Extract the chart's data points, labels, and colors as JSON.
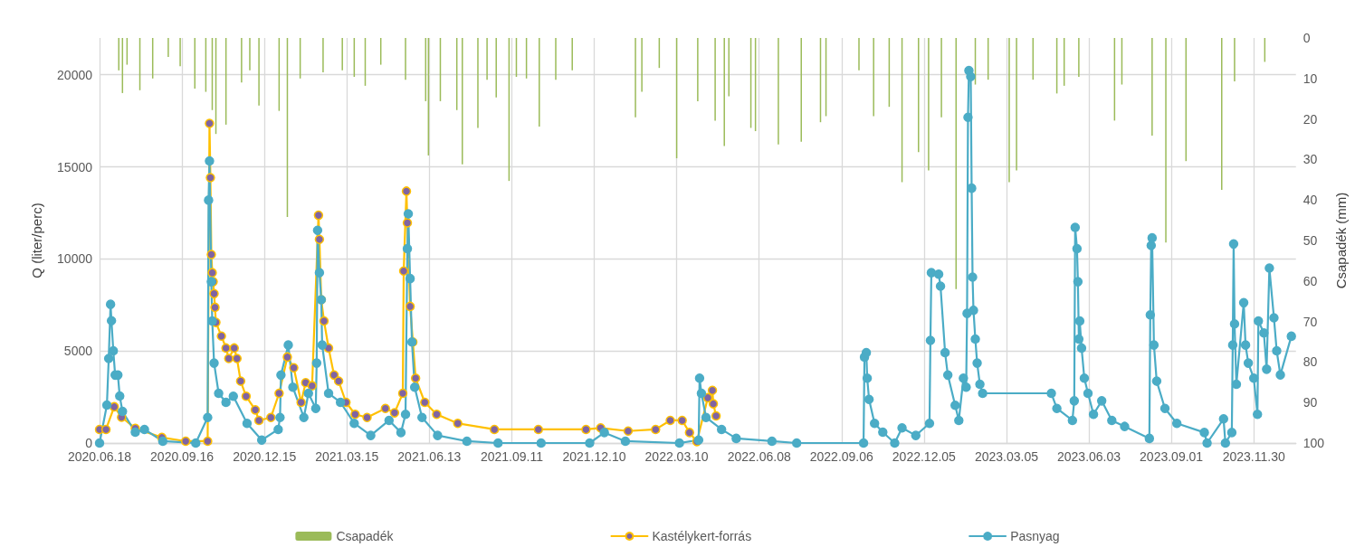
{
  "chart_data": {
    "type": "line",
    "ylabel": "Q (liter/perc)",
    "y2label": "Csapadék (mm)",
    "xlim": [
      "2020-06-18",
      "2024-01-15"
    ],
    "xticks": [
      {
        "value": "2020-06-18",
        "label": "2020.06.18"
      },
      {
        "value": "2020-09-16",
        "label": "2020.09.16"
      },
      {
        "value": "2020-12-15",
        "label": "2020.12.15"
      },
      {
        "value": "2021-03-15",
        "label": "2021.03.15"
      },
      {
        "value": "2021-06-13",
        "label": "2021.06.13"
      },
      {
        "value": "2021-09-11",
        "label": "2021.09.11"
      },
      {
        "value": "2021-12-10",
        "label": "2021.12.10"
      },
      {
        "value": "2022-03-10",
        "label": "2022.03.10"
      },
      {
        "value": "2022-06-08",
        "label": "2022.06.08"
      },
      {
        "value": "2022-09-06",
        "label": "2022.09.06"
      },
      {
        "value": "2022-12-05",
        "label": "2022.12.05"
      },
      {
        "value": "2023-03-05",
        "label": "2023.03.05"
      },
      {
        "value": "2023-06-03",
        "label": "2023.06.03"
      },
      {
        "value": "2023-09-01",
        "label": "2023.09.01"
      },
      {
        "value": "2023-11-30",
        "label": "2023.11.30"
      }
    ],
    "ylim": [
      0,
      22000
    ],
    "yticks": [
      0,
      5000,
      10000,
      15000,
      20000
    ],
    "y2lim": [
      100,
      0
    ],
    "y2ticks": [
      0,
      10,
      20,
      30,
      40,
      50,
      60,
      70,
      80,
      90,
      100
    ],
    "grid": true,
    "legend": "bottom",
    "marker": "circle",
    "line_style": "solid",
    "series": [
      {
        "name": "Csapadék",
        "type": "bar",
        "axis": "y2",
        "color": "#9bbb59",
        "x": [
          "2020-07-09",
          "2020-07-13",
          "2020-07-18",
          "2020-08-01",
          "2020-08-15",
          "2020-09-01",
          "2020-09-14",
          "2020-09-30",
          "2020-10-12",
          "2020-10-19",
          "2020-10-23",
          "2020-11-03",
          "2020-11-20",
          "2020-11-29",
          "2020-12-09",
          "2020-12-31",
          "2021-01-09",
          "2021-01-23",
          "2021-02-17",
          "2021-03-10",
          "2021-03-23",
          "2021-04-04",
          "2021-04-21",
          "2021-05-18",
          "2021-06-09",
          "2021-06-12",
          "2021-06-25",
          "2021-07-13",
          "2021-07-19",
          "2021-08-05",
          "2021-08-15",
          "2021-08-25",
          "2021-09-08",
          "2021-09-16",
          "2021-09-27",
          "2021-10-11",
          "2021-10-29",
          "2021-11-16",
          "2022-01-24",
          "2022-01-31",
          "2022-02-19",
          "2022-03-10",
          "2022-04-02",
          "2022-04-21",
          "2022-05-01",
          "2022-05-06",
          "2022-05-30",
          "2022-06-04",
          "2022-06-29",
          "2022-07-24",
          "2022-08-14",
          "2022-08-20",
          "2022-09-25",
          "2022-10-11",
          "2022-10-28",
          "2022-11-11",
          "2022-11-29",
          "2022-12-10",
          "2022-12-24",
          "2023-01-09",
          "2023-01-30",
          "2023-02-13",
          "2023-03-08",
          "2023-03-16",
          "2023-04-03",
          "2023-04-29",
          "2023-05-07",
          "2023-05-23",
          "2023-07-01",
          "2023-07-09",
          "2023-08-11",
          "2023-08-26",
          "2023-09-17",
          "2023-10-26",
          "2023-11-09",
          "2023-12-12"
        ],
        "values": [
          8,
          13.6,
          6.6,
          12.9,
          10,
          4.7,
          7,
          12.5,
          13.3,
          17.8,
          23.7,
          21.4,
          11,
          8,
          16.7,
          18,
          44.2,
          10,
          8.5,
          8,
          9.6,
          11.8,
          6.6,
          10.3,
          15.6,
          29,
          15.6,
          17.8,
          31.2,
          22.2,
          10.3,
          14.7,
          35.3,
          9.6,
          10,
          21.9,
          10.3,
          8,
          19.6,
          13.3,
          7.4,
          29.7,
          15.6,
          20.4,
          26.7,
          14.4,
          22.2,
          23,
          26.3,
          25.6,
          20.8,
          19.3,
          8,
          19.3,
          17,
          35.6,
          28.2,
          32.7,
          19.6,
          62,
          11.5,
          10.3,
          35.6,
          32.7,
          10.3,
          13.7,
          11.8,
          9.6,
          20.4,
          11.5,
          24.1,
          50.5,
          30.4,
          37.5,
          10.7,
          5.9
        ]
      },
      {
        "name": "Kastélykert-forrás",
        "color": "#ffc000",
        "x": [
          "2020-06-18",
          "2020-06-25",
          "2020-07-04",
          "2020-07-12",
          "2020-07-27",
          "2020-08-25",
          "2020-09-20",
          "2020-10-14",
          "2020-10-16",
          "2020-10-17",
          "2020-10-18",
          "2020-10-19",
          "2020-10-20",
          "2020-10-21",
          "2020-10-22",
          "2020-10-23",
          "2020-10-29",
          "2020-11-03",
          "2020-11-06",
          "2020-11-12",
          "2020-11-15",
          "2020-11-19",
          "2020-11-25",
          "2020-12-05",
          "2020-12-09",
          "2020-12-22",
          "2020-12-31",
          "2021-01-09",
          "2021-01-16",
          "2021-01-24",
          "2021-01-29",
          "2021-02-05",
          "2021-02-12",
          "2021-02-13",
          "2021-02-15",
          "2021-02-18",
          "2021-02-23",
          "2021-03-01",
          "2021-03-06",
          "2021-03-14",
          "2021-03-24",
          "2021-04-06",
          "2021-04-26",
          "2021-05-06",
          "2021-05-15",
          "2021-05-16",
          "2021-05-19",
          "2021-05-20",
          "2021-05-23",
          "2021-05-26",
          "2021-05-29",
          "2021-06-08",
          "2021-06-21",
          "2021-07-14",
          "2021-08-23",
          "2021-10-10",
          "2021-12-01",
          "2021-12-17",
          "2022-01-16",
          "2022-02-15",
          "2022-03-03",
          "2022-03-16",
          "2022-03-24",
          "2022-04-01",
          "2022-04-13",
          "2022-04-18",
          "2022-04-19",
          "2022-04-22"
        ],
        "values": [
          740,
          740,
          1970,
          1400,
          800,
          300,
          100,
          100,
          17360,
          14410,
          10240,
          9250,
          8760,
          8110,
          7370,
          6550,
          5810,
          5160,
          4590,
          5160,
          4590,
          3360,
          2540,
          1800,
          1230,
          1390,
          2700,
          4670,
          4090,
          2210,
          3280,
          3110,
          12370,
          11060,
          7780,
          6630,
          5160,
          3690,
          3360,
          2210,
          1560,
          1390,
          1880,
          1640,
          2700,
          9340,
          13680,
          11960,
          7420,
          5490,
          3520,
          2210,
          1560,
          1070,
          740,
          740,
          740,
          820,
          650,
          740,
          1230,
          1230,
          570,
          80,
          2460,
          2860,
          2130,
          1470
        ]
      },
      {
        "name": "Pasnyag",
        "color": "#4bacc6",
        "x": [
          "2020-06-18",
          "2020-06-26",
          "2020-06-28",
          "2020-06-30",
          "2020-07-01",
          "2020-07-03",
          "2020-07-05",
          "2020-07-08",
          "2020-07-10",
          "2020-07-13",
          "2020-07-27",
          "2020-08-06",
          "2020-08-26",
          "2020-10-01",
          "2020-10-14",
          "2020-10-15",
          "2020-10-16",
          "2020-10-18",
          "2020-10-19",
          "2020-10-21",
          "2020-10-26",
          "2020-11-03",
          "2020-11-11",
          "2020-11-26",
          "2020-12-12",
          "2020-12-30",
          "2021-01-01",
          "2021-01-02",
          "2021-01-10",
          "2021-01-15",
          "2021-01-27",
          "2021-02-01",
          "2021-02-09",
          "2021-02-10",
          "2021-02-11",
          "2021-02-13",
          "2021-02-15",
          "2021-02-16",
          "2021-02-23",
          "2021-03-08",
          "2021-03-23",
          "2021-04-10",
          "2021-04-30",
          "2021-05-13",
          "2021-05-18",
          "2021-05-20",
          "2021-05-21",
          "2021-05-23",
          "2021-05-25",
          "2021-05-28",
          "2021-06-05",
          "2021-06-22",
          "2021-07-24",
          "2021-08-27",
          "2021-10-13",
          "2021-12-05",
          "2021-12-21",
          "2022-01-13",
          "2022-03-13",
          "2022-04-03",
          "2022-04-04",
          "2022-04-06",
          "2022-04-11",
          "2022-04-28",
          "2022-05-14",
          "2022-06-22",
          "2022-07-19",
          "2022-09-30",
          "2022-10-01",
          "2022-10-03",
          "2022-10-04",
          "2022-10-06",
          "2022-10-12",
          "2022-10-21",
          "2022-11-03",
          "2022-11-11",
          "2022-11-26",
          "2022-12-11",
          "2022-12-12",
          "2022-12-13",
          "2022-12-21",
          "2022-12-23",
          "2022-12-28",
          "2022-12-31",
          "2023-01-08",
          "2023-01-12",
          "2023-01-17",
          "2023-01-20",
          "2023-01-21",
          "2023-01-22",
          "2023-01-23",
          "2023-01-25",
          "2023-01-26",
          "2023-01-27",
          "2023-01-28",
          "2023-01-30",
          "2023-02-01",
          "2023-02-04",
          "2023-02-07",
          "2023-04-23",
          "2023-04-29",
          "2023-05-16",
          "2023-05-18",
          "2023-05-19",
          "2023-05-21",
          "2023-05-22",
          "2023-05-23",
          "2023-05-24",
          "2023-05-26",
          "2023-05-29",
          "2023-06-02",
          "2023-06-08",
          "2023-06-17",
          "2023-06-28",
          "2023-07-12",
          "2023-08-08",
          "2023-08-09",
          "2023-08-10",
          "2023-08-11",
          "2023-08-13",
          "2023-08-16",
          "2023-08-25",
          "2023-09-07",
          "2023-10-07",
          "2023-10-10",
          "2023-10-28",
          "2023-10-30",
          "2023-11-06",
          "2023-11-07",
          "2023-11-08",
          "2023-11-09",
          "2023-11-11",
          "2023-11-19",
          "2023-11-21",
          "2023-11-24",
          "2023-11-30",
          "2023-12-04",
          "2023-12-05",
          "2023-12-11",
          "2023-12-14",
          "2023-12-17",
          "2023-12-22",
          "2023-12-25",
          "2023-12-29",
          "2024-01-10"
        ],
        "values": [
          0,
          2060,
          4590,
          7530,
          6640,
          5010,
          3690,
          3690,
          2550,
          1720,
          590,
          740,
          100,
          0,
          1390,
          13190,
          15320,
          8760,
          6630,
          4340,
          2700,
          2210,
          2540,
          1070,
          160,
          740,
          1390,
          3690,
          5320,
          3030,
          1390,
          2700,
          1880,
          4340,
          11550,
          9250,
          7780,
          5320,
          2700,
          2210,
          1070,
          410,
          1230,
          570,
          1560,
          10560,
          12450,
          8930,
          5490,
          3030,
          1390,
          410,
          100,
          0,
          0,
          0,
          570,
          100,
          0,
          160,
          3520,
          2700,
          1390,
          740,
          250,
          100,
          0,
          0,
          4670,
          4910,
          3520,
          2370,
          1070,
          590,
          0,
          820,
          410,
          1070,
          5570,
          9250,
          9170,
          8520,
          4910,
          3690,
          2050,
          1230,
          3520,
          3030,
          7040,
          17690,
          20230,
          19900,
          13840,
          9010,
          7210,
          5650,
          4340,
          3190,
          2700,
          2700,
          1880,
          1230,
          2290,
          11710,
          10560,
          8760,
          5650,
          6630,
          5160,
          3520,
          2700,
          1560,
          2290,
          1230,
          900,
          250,
          6960,
          10730,
          11140,
          5320,
          3360,
          1880,
          1070,
          570,
          0,
          1310,
          0,
          570,
          5320,
          10810,
          6470,
          3190,
          7620,
          5320,
          4340,
          3520,
          1560,
          6630,
          5980,
          4010,
          9500,
          6800,
          5010,
          3700,
          5800
        ]
      }
    ]
  }
}
